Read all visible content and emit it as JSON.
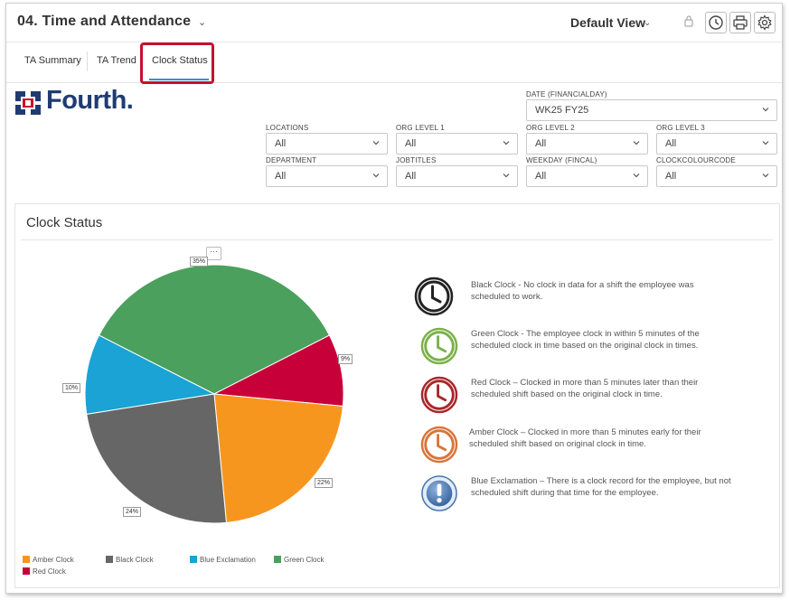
{
  "header": {
    "title": "04. Time and Attendance",
    "view_label": "Default View"
  },
  "tabs": [
    {
      "label": "TA Summary"
    },
    {
      "label": "TA Trend"
    },
    {
      "label": "Clock Status",
      "active": true
    }
  ],
  "logo": {
    "text": "Fourth."
  },
  "filters": {
    "date": {
      "label": "DATE (FINANCIALDAY)",
      "value": "WK25 FY25"
    },
    "locations": {
      "label": "LOCATIONS",
      "value": "All"
    },
    "org1": {
      "label": "ORG LEVEL 1",
      "value": "All"
    },
    "org2": {
      "label": "ORG LEVEL 2",
      "value": "All"
    },
    "org3": {
      "label": "ORG LEVEL 3",
      "value": "All"
    },
    "department": {
      "label": "DEPARTMENT",
      "value": "All"
    },
    "jobtitles": {
      "label": "JOBTITLES",
      "value": "All"
    },
    "weekday": {
      "label": "WEEKDAY (FINCAL)",
      "value": "All"
    },
    "clockcolour": {
      "label": "CLOCKCOLOURCODE",
      "value": "All"
    }
  },
  "panel": {
    "title": "Clock Status",
    "more": "···"
  },
  "chart_data": {
    "type": "pie",
    "categories": [
      "Green Clock",
      "Red Clock",
      "Amber Clock",
      "Black Clock",
      "Blue Exclamation"
    ],
    "values": [
      35,
      9,
      22,
      24,
      10
    ],
    "labels": [
      "35%",
      "9%",
      "22%",
      "24%",
      "10%"
    ],
    "colors": [
      "#4aa05c",
      "#c8003a",
      "#f7961e",
      "#666666",
      "#1aa3d4"
    ],
    "legend": [
      {
        "name": "Amber Clock",
        "color": "#f7961e"
      },
      {
        "name": "Black Clock",
        "color": "#666666"
      },
      {
        "name": "Blue Exclamation",
        "color": "#1aa3d4"
      },
      {
        "name": "Green Clock",
        "color": "#4aa05c"
      },
      {
        "name": "Red Clock",
        "color": "#c8003a"
      }
    ]
  },
  "descriptions": [
    {
      "icon": "black-clock-icon",
      "color": "#222222",
      "fill": "#f2f2f2",
      "text1": "Black Clock - No clock in data for a shift the employee was",
      "text2": "scheduled to work."
    },
    {
      "icon": "green-clock-icon",
      "color": "#7bb04a",
      "fill": "#eef6e6",
      "text1": "Green Clock - The employee clock in within 5 minutes of the",
      "text2": "scheduled clock in time based on the original clock in times."
    },
    {
      "icon": "red-clock-icon",
      "color": "#a8262b",
      "fill": "#f6e6e6",
      "text1": "Red Clock – Clocked in more than 5 minutes later than their",
      "text2": "scheduled shift based on the original clock in time."
    },
    {
      "icon": "amber-clock-icon",
      "color": "#d9743a",
      "fill": "#fbeee4",
      "text1": "Amber Clock – Clocked in more than 5 minutes early for their",
      "text2": "scheduled shift based on original clock in time."
    },
    {
      "icon": "blue-exclamation-icon",
      "color": "#3f6fa8",
      "fill": "#dfe9f5",
      "text1": "Blue Exclamation – There is a clock record for the employee, but not",
      "text2": "scheduled shift during that time for the employee."
    }
  ]
}
